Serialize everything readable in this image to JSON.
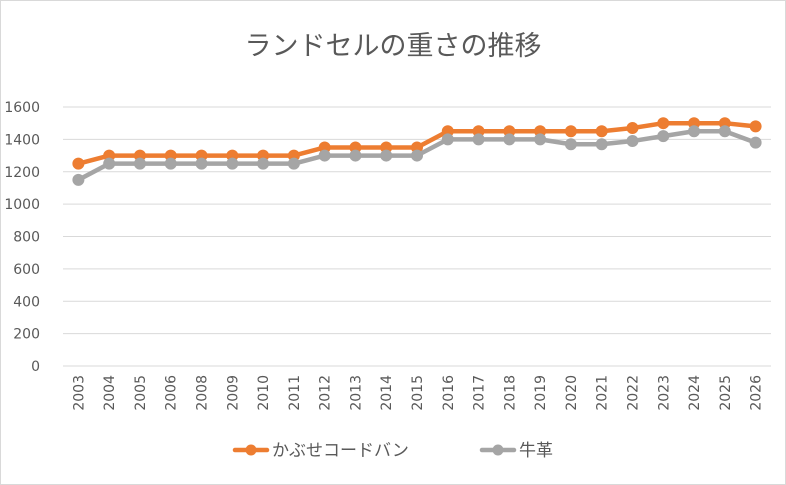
{
  "chart_data": {
    "type": "line",
    "title": "ランドセルの重さの推移",
    "categories": [
      "2003",
      "2004",
      "2005",
      "2006",
      "2008",
      "2009",
      "2010",
      "2011",
      "2012",
      "2013",
      "2014",
      "2015",
      "2016",
      "2017",
      "2018",
      "2019",
      "2020",
      "2021",
      "2022",
      "2023",
      "2024",
      "2025",
      "2026"
    ],
    "series": [
      {
        "name": "かぶせコードバン",
        "color": "#ed7d31",
        "values": [
          1250,
          1300,
          1300,
          1300,
          1300,
          1300,
          1300,
          1300,
          1350,
          1350,
          1350,
          1350,
          1450,
          1450,
          1450,
          1450,
          1450,
          1450,
          1470,
          1500,
          1500,
          1500,
          1480
        ]
      },
      {
        "name": "牛革",
        "color": "#a5a5a5",
        "values": [
          1150,
          1250,
          1250,
          1250,
          1250,
          1250,
          1250,
          1250,
          1300,
          1300,
          1300,
          1300,
          1400,
          1400,
          1400,
          1400,
          1370,
          1370,
          1390,
          1420,
          1450,
          1450,
          1380
        ]
      }
    ],
    "ylim": [
      0,
      1600
    ],
    "yticks": [
      0,
      200,
      400,
      600,
      800,
      1000,
      1200,
      1400,
      1600
    ],
    "grid": true,
    "legend_position": "bottom",
    "xlabel": "",
    "ylabel": ""
  }
}
